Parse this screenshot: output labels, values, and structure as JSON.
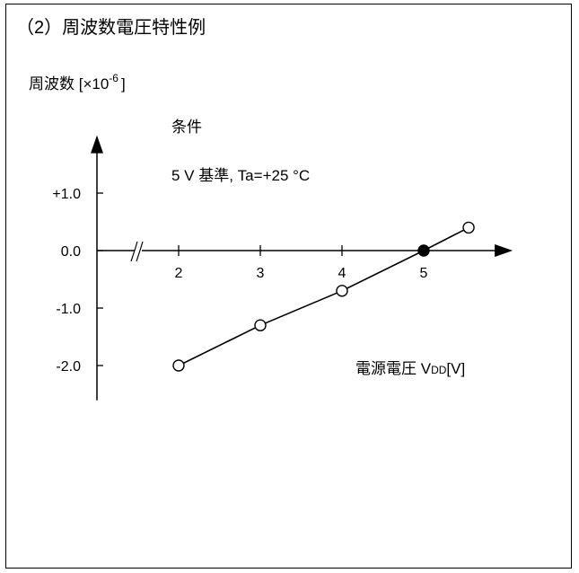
{
  "chart_data": {
    "type": "line",
    "title": "（2）周波数電圧特性例",
    "ylabel": "周波数 [×10",
    "ylabel_exp": "-6",
    "ylabel_close": "]",
    "xlabel": "電源電圧 V",
    "xlabel_sub": "DD",
    "xlabel_unit": "[V]",
    "condition_title": "条件",
    "condition_text": "5 V 基準, Ta=+25 °C",
    "x_ticks": [
      2,
      3,
      4,
      5
    ],
    "x_tick_labels": [
      "2",
      "3",
      "4",
      "5"
    ],
    "y_ticks": [
      1.0,
      0.0,
      -1.0,
      -2.0
    ],
    "y_tick_labels": [
      "+1.0",
      "0.0",
      "-1.0",
      "-2.0"
    ],
    "xlim": [
      1.35,
      6.1
    ],
    "ylim": [
      -2.7,
      2.1
    ],
    "x_axis_break": true,
    "series": [
      {
        "x": [
          2.0,
          3.0,
          4.0,
          5.0,
          5.55
        ],
        "y": [
          -2.0,
          -1.3,
          -0.7,
          0.0,
          0.4
        ],
        "filled": [
          false,
          false,
          false,
          true,
          false
        ]
      }
    ],
    "grid": false,
    "legend": false
  }
}
